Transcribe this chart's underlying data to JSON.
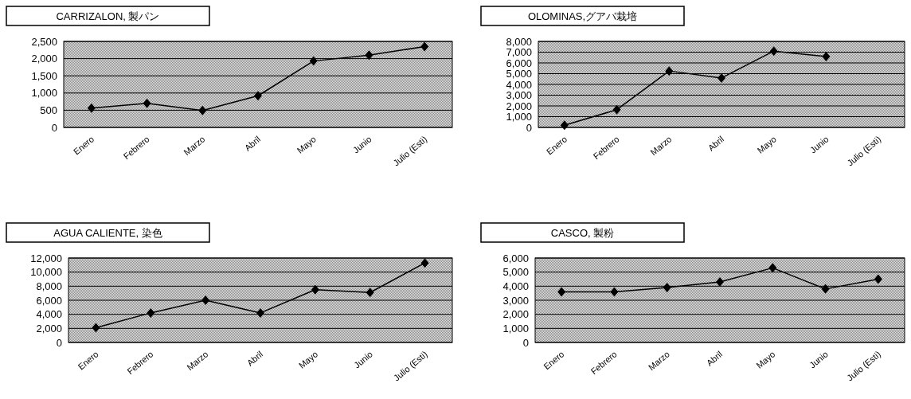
{
  "chart_data": [
    {
      "type": "line",
      "title": "CARRIZALON, 製パン",
      "categories": [
        "Enero",
        "Febrero",
        "Marzo",
        "Abril",
        "Mayo",
        "Junio",
        "Julio (Esti)"
      ],
      "ylim": [
        0,
        2500
      ],
      "yticks": [
        {
          "value": 0,
          "label": "0"
        },
        {
          "value": 500,
          "label": "500"
        },
        {
          "value": 1000,
          "label": "1,000"
        },
        {
          "value": 1500,
          "label": "1,500"
        },
        {
          "value": 2000,
          "label": "2,000"
        },
        {
          "value": 2500,
          "label": "2,500"
        }
      ],
      "grid": "y",
      "marker": "diamond",
      "series": [
        {
          "color": "#000000",
          "values": [
            560,
            700,
            490,
            920,
            1930,
            2100,
            2350
          ]
        }
      ]
    },
    {
      "type": "line",
      "title": "OLOMINAS,グアバ栽培",
      "categories": [
        "Enero",
        "Febrero",
        "Marzo",
        "Abril",
        "Mayo",
        "Junio",
        "Julio (Esti)"
      ],
      "ylim": [
        0,
        8000
      ],
      "yticks": [
        {
          "value": 0,
          "label": "0"
        },
        {
          "value": 1000,
          "label": "1,000"
        },
        {
          "value": 2000,
          "label": "2,000"
        },
        {
          "value": 3000,
          "label": "3,000"
        },
        {
          "value": 4000,
          "label": "4,000"
        },
        {
          "value": 5000,
          "label": "5,000"
        },
        {
          "value": 6000,
          "label": "6,000"
        },
        {
          "value": 7000,
          "label": "7,000"
        },
        {
          "value": 8000,
          "label": "8,000"
        }
      ],
      "grid": "y",
      "marker": "diamond",
      "series": [
        {
          "color": "#000000",
          "values": [
            200,
            1650,
            5250,
            4600,
            7100,
            6600,
            null
          ]
        }
      ]
    },
    {
      "type": "line",
      "title": "AGUA CALIENTE, 染色",
      "categories": [
        "Enero",
        "Febrero",
        "Marzo",
        "Abril",
        "Mayo",
        "Junio",
        "Julio (Esti)"
      ],
      "ylim": [
        0,
        12000
      ],
      "yticks": [
        {
          "value": 0,
          "label": "0"
        },
        {
          "value": 2000,
          "label": "2,000"
        },
        {
          "value": 4000,
          "label": "4,000"
        },
        {
          "value": 6000,
          "label": "6,000"
        },
        {
          "value": 8000,
          "label": "8,000"
        },
        {
          "value": 10000,
          "label": "10,000"
        },
        {
          "value": 12000,
          "label": "12,000"
        }
      ],
      "grid": "y",
      "marker": "diamond",
      "series": [
        {
          "color": "#000000",
          "values": [
            2100,
            4200,
            6000,
            4200,
            7500,
            7100,
            11300
          ]
        }
      ]
    },
    {
      "type": "line",
      "title": "CASCO, 製粉",
      "categories": [
        "Enero",
        "Febrero",
        "Marzo",
        "Abril",
        "Mayo",
        "Junio",
        "Julio (Esti)"
      ],
      "ylim": [
        0,
        6000
      ],
      "yticks": [
        {
          "value": 0,
          "label": "0"
        },
        {
          "value": 1000,
          "label": "1,000"
        },
        {
          "value": 2000,
          "label": "2,000"
        },
        {
          "value": 3000,
          "label": "3,000"
        },
        {
          "value": 4000,
          "label": "4,000"
        },
        {
          "value": 5000,
          "label": "5,000"
        },
        {
          "value": 6000,
          "label": "6,000"
        }
      ],
      "grid": "y",
      "marker": "diamond",
      "series": [
        {
          "color": "#000000",
          "values": [
            3600,
            3600,
            3900,
            4300,
            5300,
            3800,
            4500
          ]
        }
      ]
    }
  ]
}
